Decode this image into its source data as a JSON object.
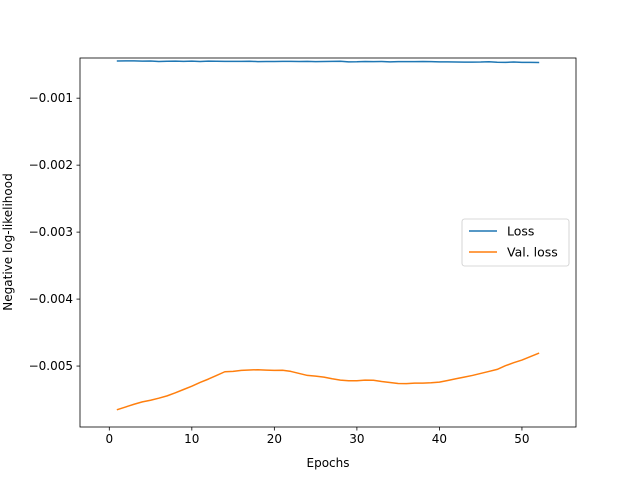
{
  "chart_data": {
    "type": "line",
    "title": "",
    "xlabel": "Epochs",
    "ylabel": "Negative log-likelihood",
    "xlim": [
      -3.55,
      56.55
    ],
    "ylim": [
      -0.00591,
      -0.0004
    ],
    "xticks": [
      0,
      10,
      20,
      30,
      40,
      50
    ],
    "yticks": [
      -0.005,
      -0.004,
      -0.003,
      -0.002,
      -0.001
    ],
    "ytick_labels": [
      "−0.005",
      "−0.004",
      "−0.003",
      "−0.002",
      "−0.001"
    ],
    "grid": false,
    "legend_position": "center-right",
    "x": [
      1,
      2,
      3,
      4,
      5,
      6,
      7,
      8,
      9,
      10,
      11,
      12,
      13,
      14,
      15,
      16,
      17,
      18,
      19,
      20,
      21,
      22,
      23,
      24,
      25,
      26,
      27,
      28,
      29,
      30,
      31,
      32,
      33,
      34,
      35,
      36,
      37,
      38,
      39,
      40,
      41,
      42,
      43,
      44,
      45,
      46,
      47,
      48,
      49,
      50,
      51,
      52
    ],
    "series": [
      {
        "name": "Loss",
        "color": "#1f77b4",
        "values": [
          -0.000445,
          -0.000443,
          -0.000443,
          -0.000447,
          -0.000444,
          -0.000452,
          -0.000449,
          -0.000446,
          -0.00045,
          -0.000447,
          -0.000452,
          -0.000447,
          -0.000449,
          -0.000451,
          -0.00045,
          -0.00045,
          -0.000448,
          -0.000454,
          -0.000453,
          -0.000453,
          -0.00045,
          -0.00045,
          -0.000453,
          -0.00045,
          -0.000455,
          -0.000452,
          -0.00045,
          -0.000449,
          -0.000457,
          -0.000456,
          -0.000452,
          -0.000455,
          -0.000452,
          -0.000458,
          -0.000455,
          -0.000455,
          -0.000455,
          -0.000452,
          -0.000455,
          -0.000457,
          -0.000458,
          -0.000459,
          -0.000461,
          -0.000461,
          -0.00046,
          -0.000456,
          -0.000464,
          -0.000466,
          -0.00046,
          -0.000466,
          -0.000466,
          -0.000467
        ]
      },
      {
        "name": "Val. loss",
        "color": "#ff7f0e",
        "values": [
          -0.00565,
          -0.00561,
          -0.00557,
          -0.005535,
          -0.00551,
          -0.00548,
          -0.005445,
          -0.0054,
          -0.00535,
          -0.0053,
          -0.005245,
          -0.005195,
          -0.00514,
          -0.005085,
          -0.00508,
          -0.005065,
          -0.005058,
          -0.005055,
          -0.00506,
          -0.005065,
          -0.005062,
          -0.00508,
          -0.00511,
          -0.00514,
          -0.00515,
          -0.005165,
          -0.00519,
          -0.00521,
          -0.00522,
          -0.00522,
          -0.00521,
          -0.005212,
          -0.00523,
          -0.005245,
          -0.00526,
          -0.005262,
          -0.005255,
          -0.005255,
          -0.00525,
          -0.00524,
          -0.005215,
          -0.00519,
          -0.005165,
          -0.00514,
          -0.00511,
          -0.00508,
          -0.00505,
          -0.004995,
          -0.00495,
          -0.00491,
          -0.00486,
          -0.00481
        ]
      }
    ]
  }
}
